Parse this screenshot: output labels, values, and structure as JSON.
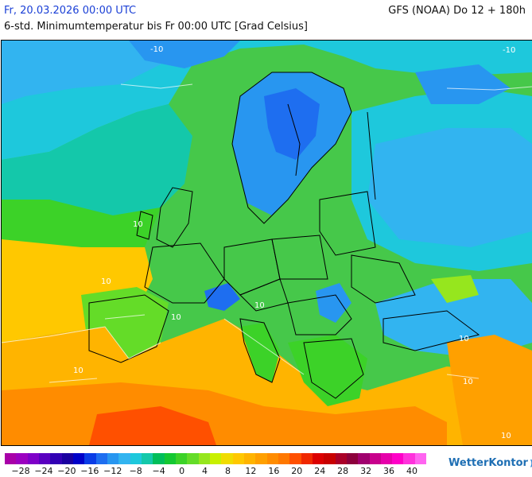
{
  "header": {
    "date": "Fr, 20.03.2026 00:00 UTC",
    "model": "GFS (NOAA) Do 12 + 180h",
    "subtitle": "6-std. Minimumtemperatur bis Fr 00:00 UTC [Grad Celsius]"
  },
  "legend": {
    "labels": [
      "−28",
      "−24",
      "−20",
      "−16",
      "−12",
      "−8",
      "−4",
      "0",
      "4",
      "8",
      "12",
      "16",
      "20",
      "24",
      "28",
      "32",
      "36",
      "40"
    ],
    "colors": [
      "#a800a8",
      "#9b00c0",
      "#7e00c8",
      "#5a00c0",
      "#3200b4",
      "#1a00a0",
      "#0000c8",
      "#0a3ce6",
      "#1e6ef0",
      "#2896f0",
      "#32b4f0",
      "#1ec8dc",
      "#14c8aa",
      "#00be5a",
      "#14c832",
      "#3cd228",
      "#64dc28",
      "#96e61e",
      "#c8f000",
      "#f0dc00",
      "#ffc800",
      "#ffb400",
      "#ffa000",
      "#ff8c00",
      "#ff7800",
      "#ff5000",
      "#f02800",
      "#dc0000",
      "#c80000",
      "#aa0028",
      "#8c003c",
      "#a0006e",
      "#c8008c",
      "#e600aa",
      "#ff00c8",
      "#ff32dc",
      "#ff64f0"
    ]
  },
  "isolines": {
    "minus10_a": "-10",
    "minus10_b": "-10",
    "ten_a": "10",
    "ten_b": "10",
    "ten_c": "10",
    "ten_d": "10",
    "ten_e": "10",
    "ten_f": "10",
    "ten_g": "10",
    "ten_h": "10"
  },
  "brand": {
    "name": "WetterKontor",
    "mark": "))"
  }
}
